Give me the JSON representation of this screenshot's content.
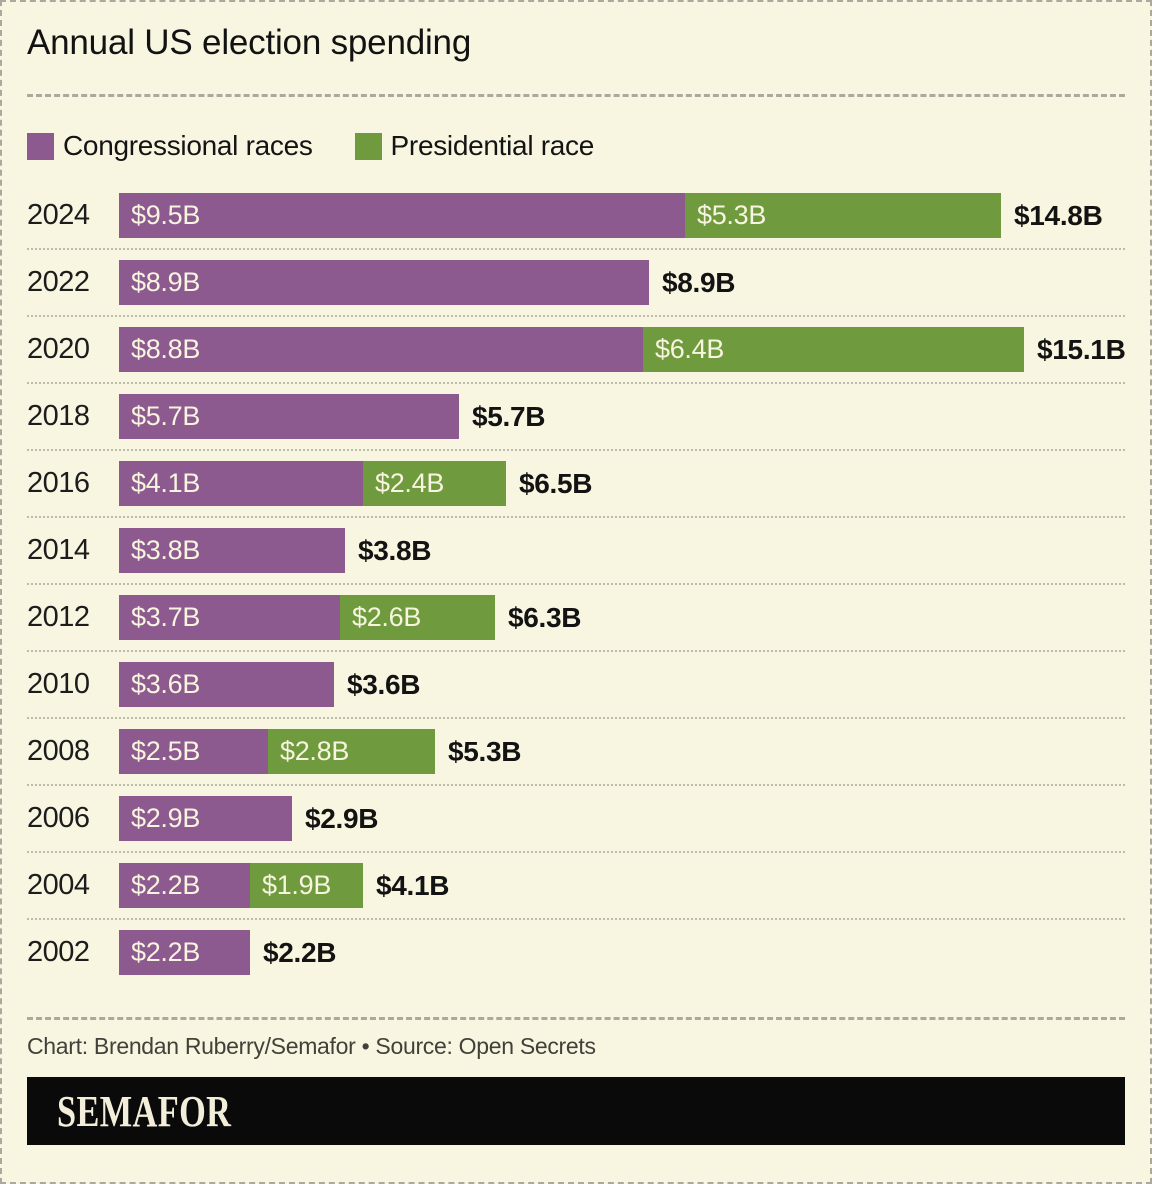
{
  "title": "Annual US election spending",
  "legend": {
    "items": [
      {
        "label": "Congressional races",
        "color": "#8d5a8f"
      },
      {
        "label": "Presidential race",
        "color": "#6f9a3e"
      }
    ]
  },
  "chart_data": {
    "type": "bar",
    "orientation": "horizontal",
    "stacked": true,
    "unit": "billions of US dollars",
    "title": "Annual US election spending",
    "categories": [
      "2024",
      "2022",
      "2020",
      "2018",
      "2016",
      "2014",
      "2012",
      "2010",
      "2008",
      "2006",
      "2004",
      "2002"
    ],
    "series": [
      {
        "name": "Congressional races",
        "color": "#8d5a8f",
        "values": [
          9.5,
          8.9,
          8.8,
          5.7,
          4.1,
          3.8,
          3.7,
          3.6,
          2.5,
          2.9,
          2.2,
          2.2
        ]
      },
      {
        "name": "Presidential race",
        "color": "#6f9a3e",
        "values": [
          5.3,
          null,
          6.4,
          null,
          2.4,
          null,
          2.6,
          null,
          2.8,
          null,
          1.9,
          null
        ]
      }
    ],
    "totals": [
      14.8,
      8.9,
      15.1,
      5.7,
      6.5,
      3.8,
      6.3,
      3.6,
      5.3,
      2.9,
      4.1,
      2.2
    ],
    "bar_labels": {
      "congressional": [
        "$9.5B",
        "$8.9B",
        "$8.8B",
        "$5.7B",
        "$4.1B",
        "$3.8B",
        "$3.7B",
        "$3.6B",
        "$2.5B",
        "$2.9B",
        "$2.2B",
        "$2.2B"
      ],
      "presidential": [
        "$5.3B",
        null,
        "$6.4B",
        null,
        "$2.4B",
        null,
        "$2.6B",
        null,
        "$2.8B",
        null,
        "$1.9B",
        null
      ],
      "totals": [
        "$14.8B",
        "$8.9B",
        "$15.1B",
        "$5.7B",
        "$6.5B",
        "$3.8B",
        "$6.3B",
        "$3.6B",
        "$5.3B",
        "$2.9B",
        "$4.1B",
        "$2.2B"
      ]
    },
    "x_axis": {
      "min": 0,
      "max": 15.1,
      "ticks_visible": false
    },
    "grid": false,
    "legend_position": "top-left",
    "value_labels": "inside-segments and bold total at bar end"
  },
  "footer": {
    "credit": "Chart: Brendan Ruberry/Semafor • Source: Open Secrets",
    "brand": "SEMAFOR"
  },
  "colors": {
    "background": "#f8f6e1",
    "congressional": "#8d5a8f",
    "presidential": "#6f9a3e",
    "segment_label": "#f7f4df",
    "total_label": "#131313",
    "brand_bg": "#0a0a0a",
    "brand_text": "#f2eeda"
  }
}
